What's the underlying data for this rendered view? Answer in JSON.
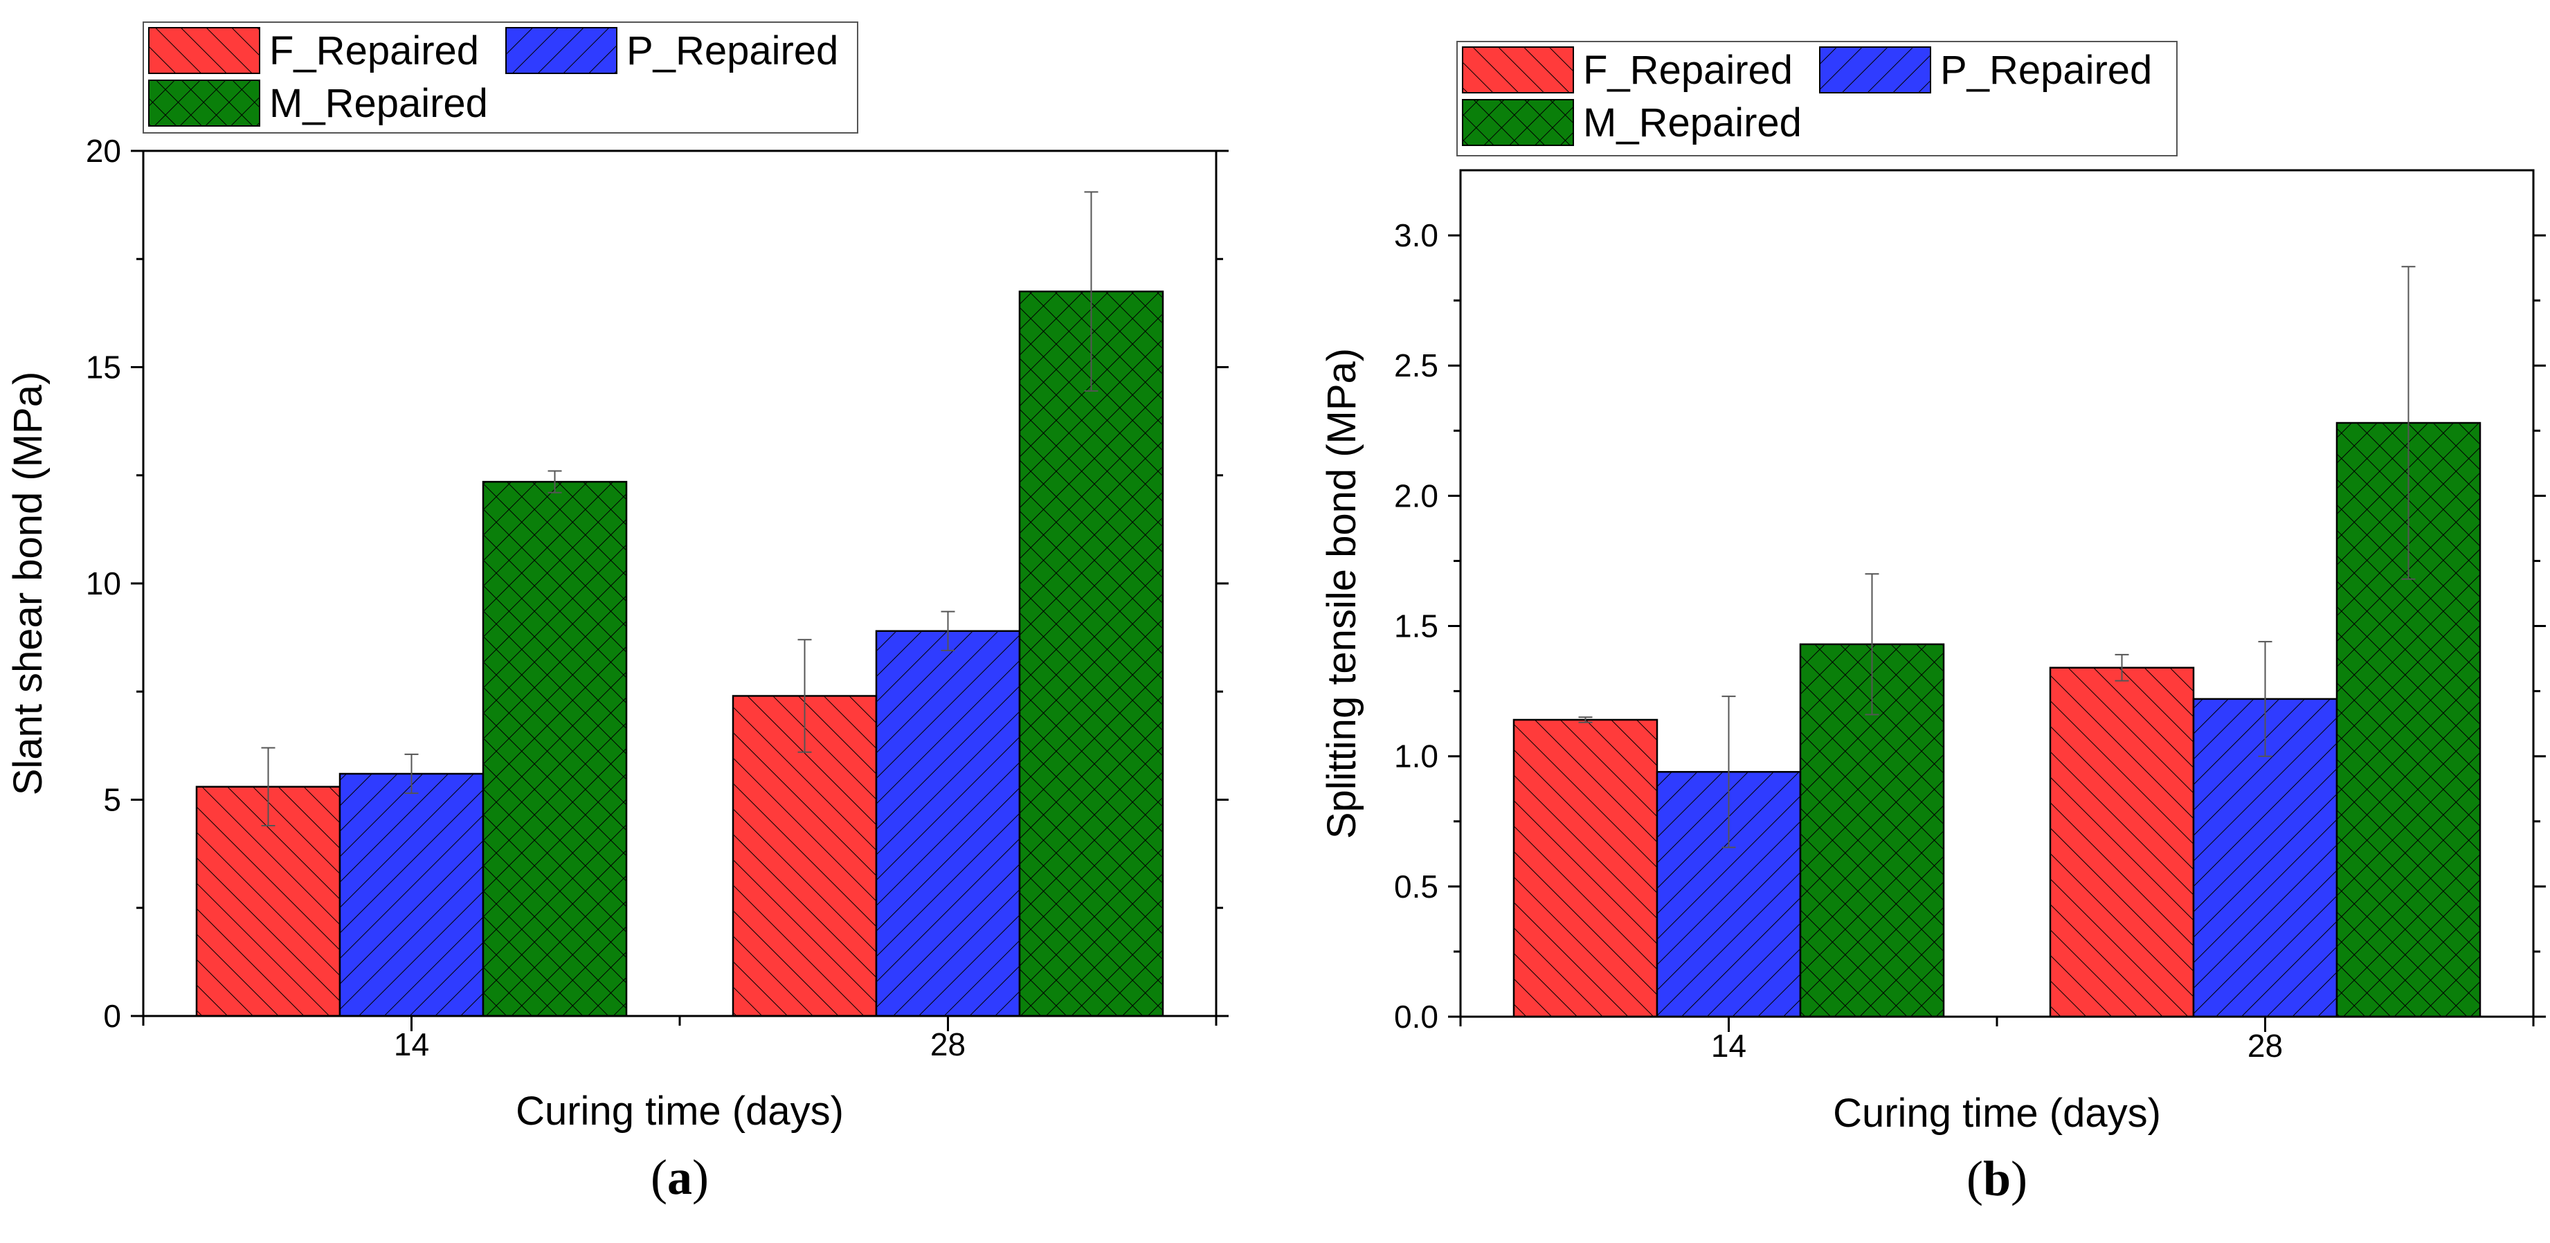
{
  "colors": {
    "F_Repaired": "#ff3b3b",
    "P_Repaired": "#2f3cff",
    "M_Repaired": "#0a7f0a",
    "axis": "#000000",
    "error_bar": "#555555"
  },
  "legend_hatches": {
    "F_Repaired": "diagonal-right",
    "P_Repaired": "diagonal-left",
    "M_Repaired": "crosshatch"
  },
  "panel_labels": [
    "(a)",
    "(b)"
  ],
  "chart_data": [
    {
      "type": "bar",
      "panel_label": "(a)",
      "title": "",
      "xlabel": "Curing time (days)",
      "ylabel": "Slant shear bond (MPa)",
      "categories": [
        "14",
        "28"
      ],
      "ylim": [
        0,
        20
      ],
      "yticks": [
        0,
        5,
        10,
        15,
        20
      ],
      "ytick_labels": [
        "0",
        "5",
        "10",
        "15",
        "20"
      ],
      "grid": false,
      "legend_position": "top-left, above plot",
      "series": [
        {
          "name": "F_Repaired",
          "values": [
            5.3,
            7.4
          ],
          "errors": [
            0.9,
            1.3
          ]
        },
        {
          "name": "P_Repaired",
          "values": [
            5.6,
            8.9
          ],
          "errors": [
            0.45,
            0.45
          ]
        },
        {
          "name": "M_Repaired",
          "values": [
            12.35,
            16.75
          ],
          "errors": [
            0.25,
            2.3
          ]
        }
      ]
    },
    {
      "type": "bar",
      "panel_label": "(b)",
      "title": "",
      "xlabel": "Curing time (days)",
      "ylabel": "Splitting tensile bond (MPa)",
      "categories": [
        "14",
        "28"
      ],
      "ylim": [
        0,
        3.25
      ],
      "yticks": [
        0,
        0.5,
        1.0,
        1.5,
        2.0,
        2.5,
        3.0
      ],
      "ytick_labels": [
        "0.0",
        "0.5",
        "1.0",
        "1.5",
        "2.0",
        "2.5",
        "3.0"
      ],
      "grid": false,
      "legend_position": "top-left, above plot",
      "series": [
        {
          "name": "F_Repaired",
          "values": [
            1.14,
            1.34
          ],
          "errors": [
            0.01,
            0.05
          ]
        },
        {
          "name": "P_Repaired",
          "values": [
            0.94,
            1.22
          ],
          "errors": [
            0.29,
            0.22
          ]
        },
        {
          "name": "M_Repaired",
          "values": [
            1.43,
            2.28
          ],
          "errors": [
            0.27,
            0.6
          ]
        }
      ]
    }
  ]
}
